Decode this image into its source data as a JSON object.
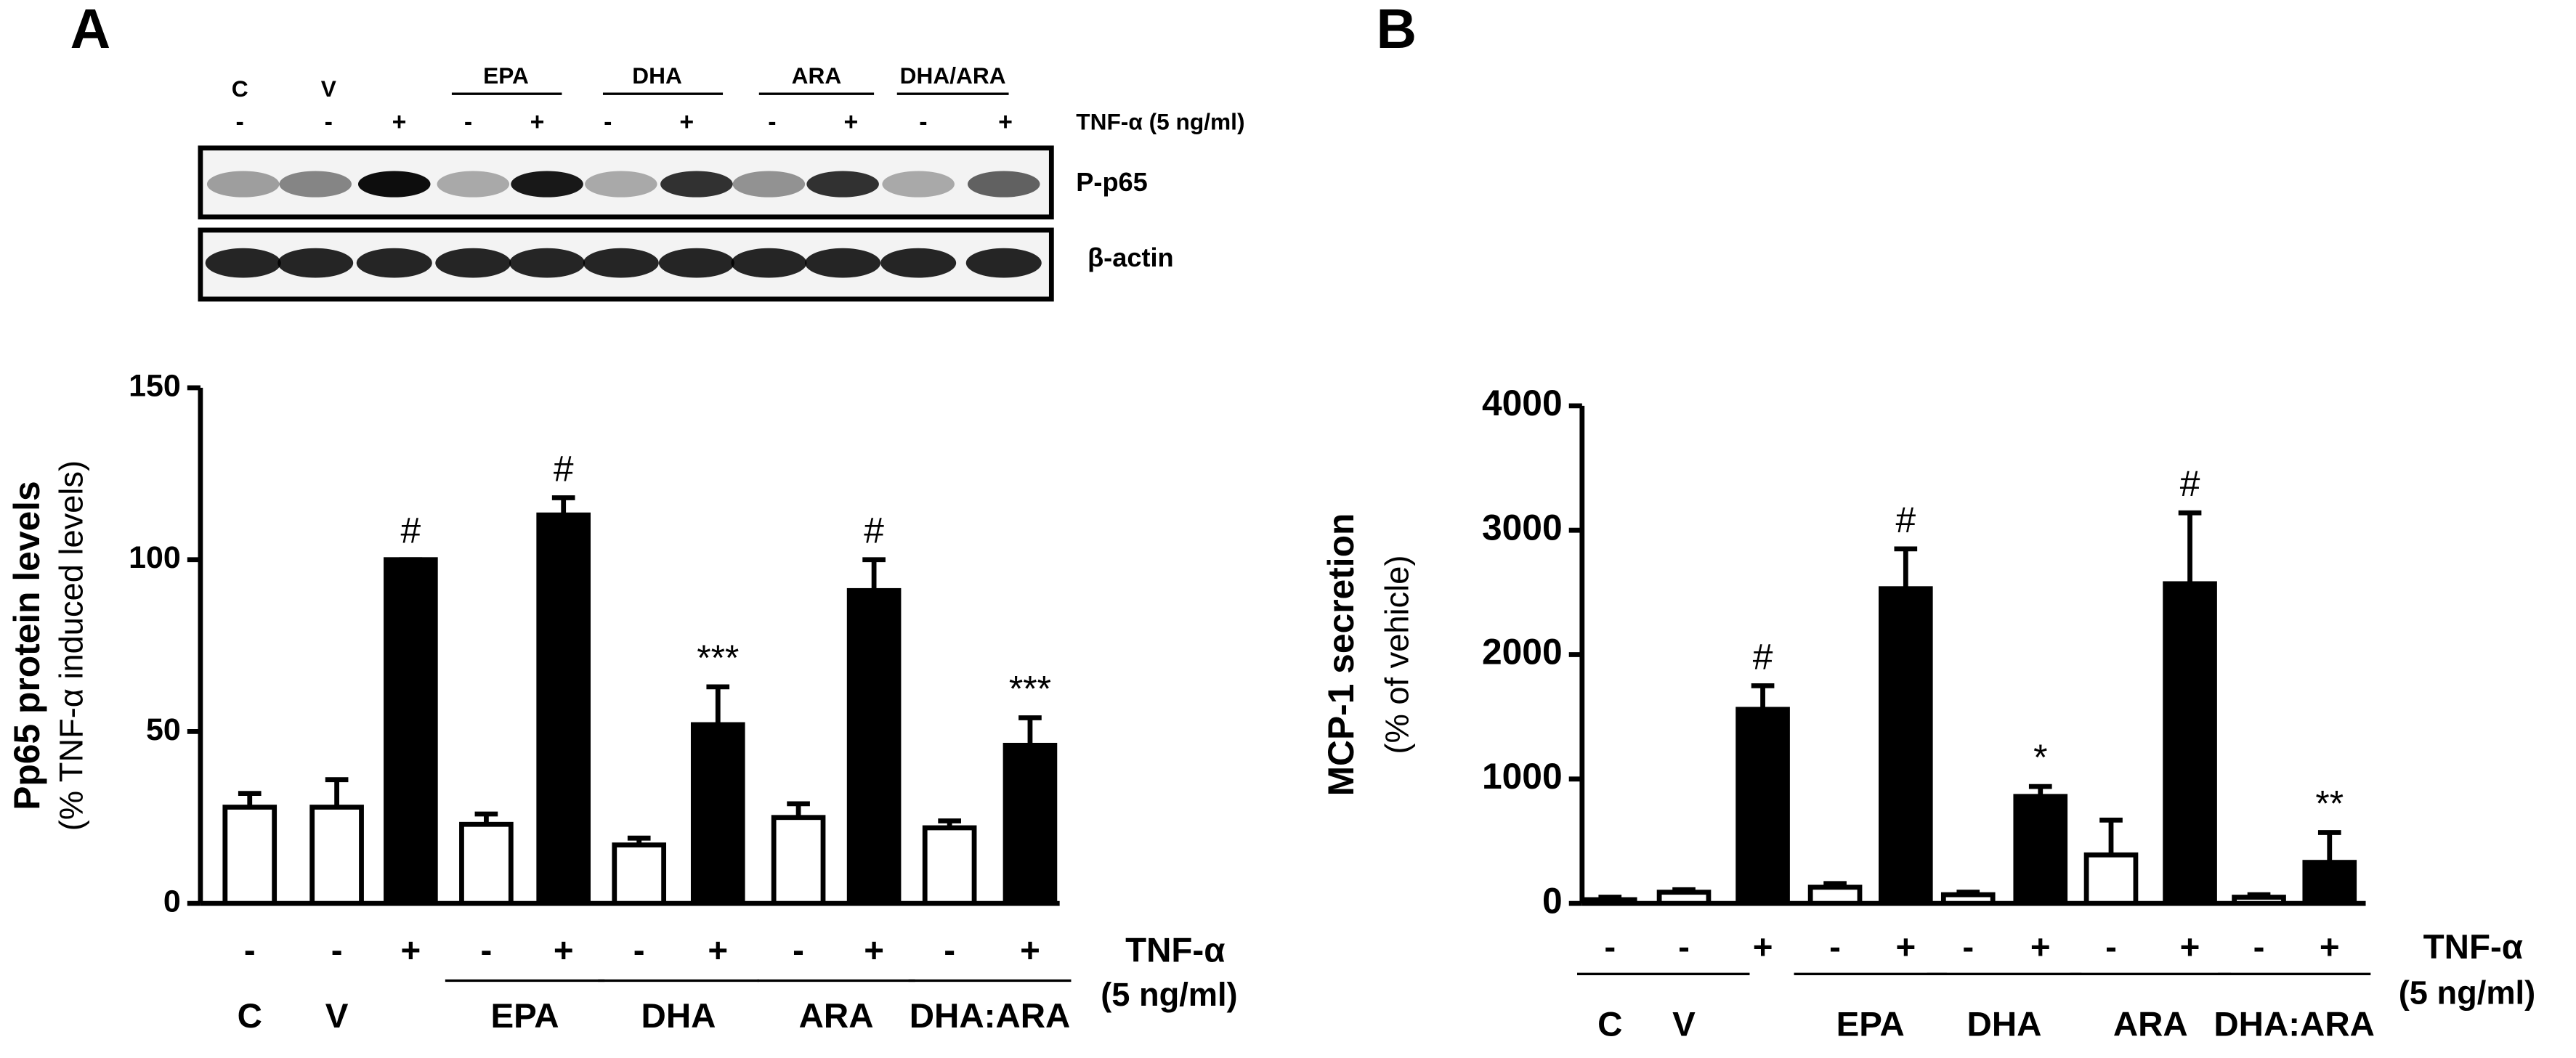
{
  "blot": {
    "treatments": [
      "C",
      "V",
      "EPA",
      "DHA",
      "ARA",
      "DHA/ARA"
    ],
    "tnf": [
      "-",
      "-",
      "+",
      "-",
      "+",
      "-",
      "+",
      "-",
      "+",
      "-",
      "+"
    ],
    "tnf_label": "TNF-α (5 ng/ml)",
    "rows": [
      "P-p65",
      "β-actin"
    ]
  },
  "chart_data": [
    {
      "type": "bar",
      "panel": "A",
      "y_label": "Pp65 protein levels",
      "y_sublabel": "(% TNF-α induced levels)",
      "categories": [
        "-",
        "-",
        "+",
        "-",
        "+",
        "-",
        "+",
        "-",
        "+",
        "-",
        "+"
      ],
      "values": [
        28,
        28,
        100,
        23,
        113,
        17,
        52,
        25,
        91,
        22,
        46
      ],
      "errors": [
        4,
        8,
        0,
        3,
        5,
        2,
        11,
        4,
        9,
        2,
        8
      ],
      "colors": [
        "#ffffff",
        "#ffffff",
        "#000000",
        "#ffffff",
        "#000000",
        "#ffffff",
        "#000000",
        "#ffffff",
        "#000000",
        "#ffffff",
        "#000000"
      ],
      "annotations": [
        null,
        null,
        "#",
        null,
        "#",
        null,
        "***",
        null,
        "#",
        null,
        "***"
      ],
      "groups": [
        {
          "label": "C",
          "bars": [
            0
          ]
        },
        {
          "label": "V",
          "bars": [
            1
          ]
        },
        {
          "label": "EPA",
          "bars": [
            3,
            4
          ]
        },
        {
          "label": "DHA",
          "bars": [
            5,
            6
          ]
        },
        {
          "label": "ARA",
          "bars": [
            7,
            8
          ]
        },
        {
          "label": "DHA:ARA",
          "bars": [
            9,
            10
          ]
        }
      ],
      "treatment_label": "TNF-α",
      "treatment_sublabel": "(5 ng/ml)",
      "ylim": [
        0,
        150
      ],
      "yticks": [
        0,
        50,
        100,
        150
      ]
    },
    {
      "type": "bar",
      "panel": "B",
      "y_label": "MCP-1 secretion",
      "y_sublabel": "(% of vehicle)",
      "categories": [
        "-",
        "-",
        "+",
        "-",
        "+",
        "-",
        "+",
        "-",
        "+",
        "-",
        "+"
      ],
      "values": [
        30,
        90,
        1560,
        130,
        2530,
        70,
        860,
        390,
        2570,
        50,
        330
      ],
      "errors": [
        20,
        20,
        190,
        30,
        320,
        20,
        80,
        280,
        570,
        20,
        240
      ],
      "colors": [
        "#ffffff",
        "#ffffff",
        "#000000",
        "#ffffff",
        "#000000",
        "#ffffff",
        "#000000",
        "#ffffff",
        "#000000",
        "#ffffff",
        "#000000"
      ],
      "annotations": [
        null,
        null,
        "#",
        null,
        "#",
        null,
        "*",
        null,
        "#",
        null,
        "**"
      ],
      "groups": [
        {
          "label": "C",
          "bars": [
            0
          ]
        },
        {
          "label": "V",
          "bars": [
            1
          ]
        },
        {
          "label": "EPA",
          "bars": [
            3,
            4
          ]
        },
        {
          "label": "DHA",
          "bars": [
            5,
            6
          ]
        },
        {
          "label": "ARA",
          "bars": [
            7,
            8
          ]
        },
        {
          "label": "DHA:ARA",
          "bars": [
            9,
            10
          ]
        }
      ],
      "treatment_label": "TNF-α",
      "treatment_sublabel": "(5 ng/ml)",
      "ylim": [
        0,
        4000
      ],
      "yticks": [
        0,
        1000,
        2000,
        3000,
        4000
      ]
    }
  ]
}
